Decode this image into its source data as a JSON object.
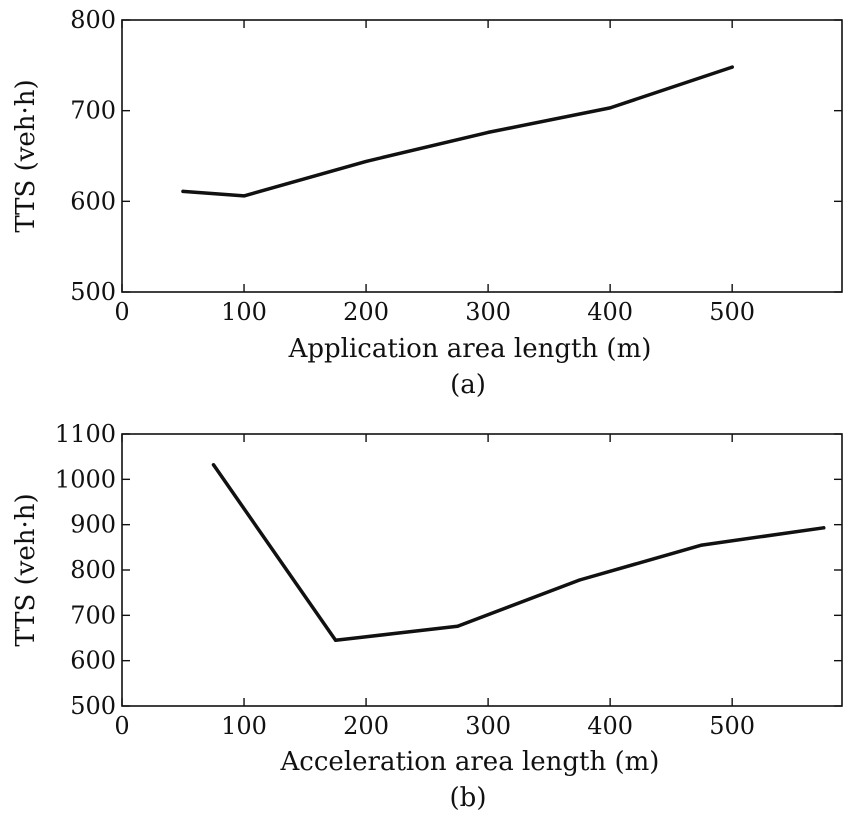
{
  "chart_data": [
    {
      "type": "line",
      "panel_caption": "(a)",
      "xlabel": "Application area length (m)",
      "ylabel": "TTS (veh·h)",
      "xlim": [
        0,
        590
      ],
      "ylim": [
        500,
        800
      ],
      "xticks": [
        0,
        100,
        200,
        300,
        400,
        500
      ],
      "yticks": [
        500,
        600,
        700,
        800
      ],
      "grid": false,
      "series": [
        {
          "x": [
            50,
            100,
            200,
            300,
            400,
            500
          ],
          "values": [
            611,
            606,
            644,
            676,
            703,
            748
          ]
        }
      ]
    },
    {
      "type": "line",
      "panel_caption": "(b)",
      "xlabel": "Acceleration area length (m)",
      "ylabel": "TTS (veh·h)",
      "xlim": [
        0,
        590
      ],
      "ylim": [
        500,
        1100
      ],
      "xticks": [
        0,
        100,
        200,
        300,
        400,
        500
      ],
      "yticks": [
        500,
        600,
        700,
        800,
        900,
        1000,
        1100
      ],
      "grid": false,
      "series": [
        {
          "x": [
            75,
            175,
            275,
            375,
            475,
            575
          ],
          "values": [
            1032,
            645,
            676,
            778,
            855,
            893
          ]
        }
      ]
    }
  ]
}
